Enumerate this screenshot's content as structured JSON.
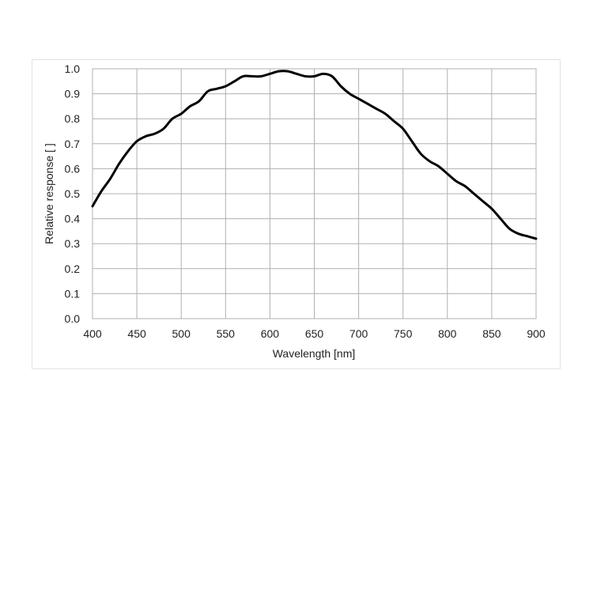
{
  "chart_data": {
    "type": "line",
    "title": "",
    "xlabel": "Wavelength [nm]",
    "ylabel": "Relative response [ ]",
    "xlim": [
      400,
      900
    ],
    "ylim": [
      0.0,
      1.0
    ],
    "x_ticks": [
      400,
      450,
      500,
      550,
      600,
      650,
      700,
      750,
      800,
      850,
      900
    ],
    "x_tick_labels": [
      "400",
      "450",
      "500",
      "550",
      "600",
      "650",
      "700",
      "750",
      "800",
      "850",
      "900"
    ],
    "y_ticks": [
      0.0,
      0.1,
      0.2,
      0.3,
      0.4,
      0.5,
      0.6,
      0.7,
      0.8,
      0.9,
      1.0
    ],
    "y_tick_labels": [
      "0.0",
      "0.1",
      "0.2",
      "0.3",
      "0.4",
      "0.5",
      "0.6",
      "0.7",
      "0.8",
      "0.9",
      "1.0"
    ],
    "grid": true,
    "legend": "none",
    "line_color": "#000000",
    "grid_color": "#b0b0b0",
    "series": [
      {
        "x": [
          400,
          410,
          420,
          430,
          440,
          450,
          460,
          470,
          480,
          490,
          500,
          510,
          520,
          530,
          540,
          550,
          560,
          570,
          580,
          590,
          600,
          610,
          620,
          630,
          640,
          650,
          660,
          670,
          680,
          690,
          700,
          710,
          720,
          730,
          740,
          750,
          760,
          770,
          780,
          790,
          800,
          810,
          820,
          830,
          840,
          850,
          860,
          870,
          880,
          890,
          900
        ],
        "y": [
          0.45,
          0.51,
          0.56,
          0.62,
          0.67,
          0.71,
          0.73,
          0.74,
          0.76,
          0.8,
          0.82,
          0.85,
          0.87,
          0.91,
          0.92,
          0.93,
          0.95,
          0.97,
          0.97,
          0.97,
          0.98,
          0.99,
          0.99,
          0.98,
          0.97,
          0.97,
          0.98,
          0.97,
          0.93,
          0.9,
          0.88,
          0.86,
          0.84,
          0.82,
          0.79,
          0.76,
          0.71,
          0.66,
          0.63,
          0.61,
          0.58,
          0.55,
          0.53,
          0.5,
          0.47,
          0.44,
          0.4,
          0.36,
          0.34,
          0.33,
          0.32
        ]
      }
    ]
  }
}
